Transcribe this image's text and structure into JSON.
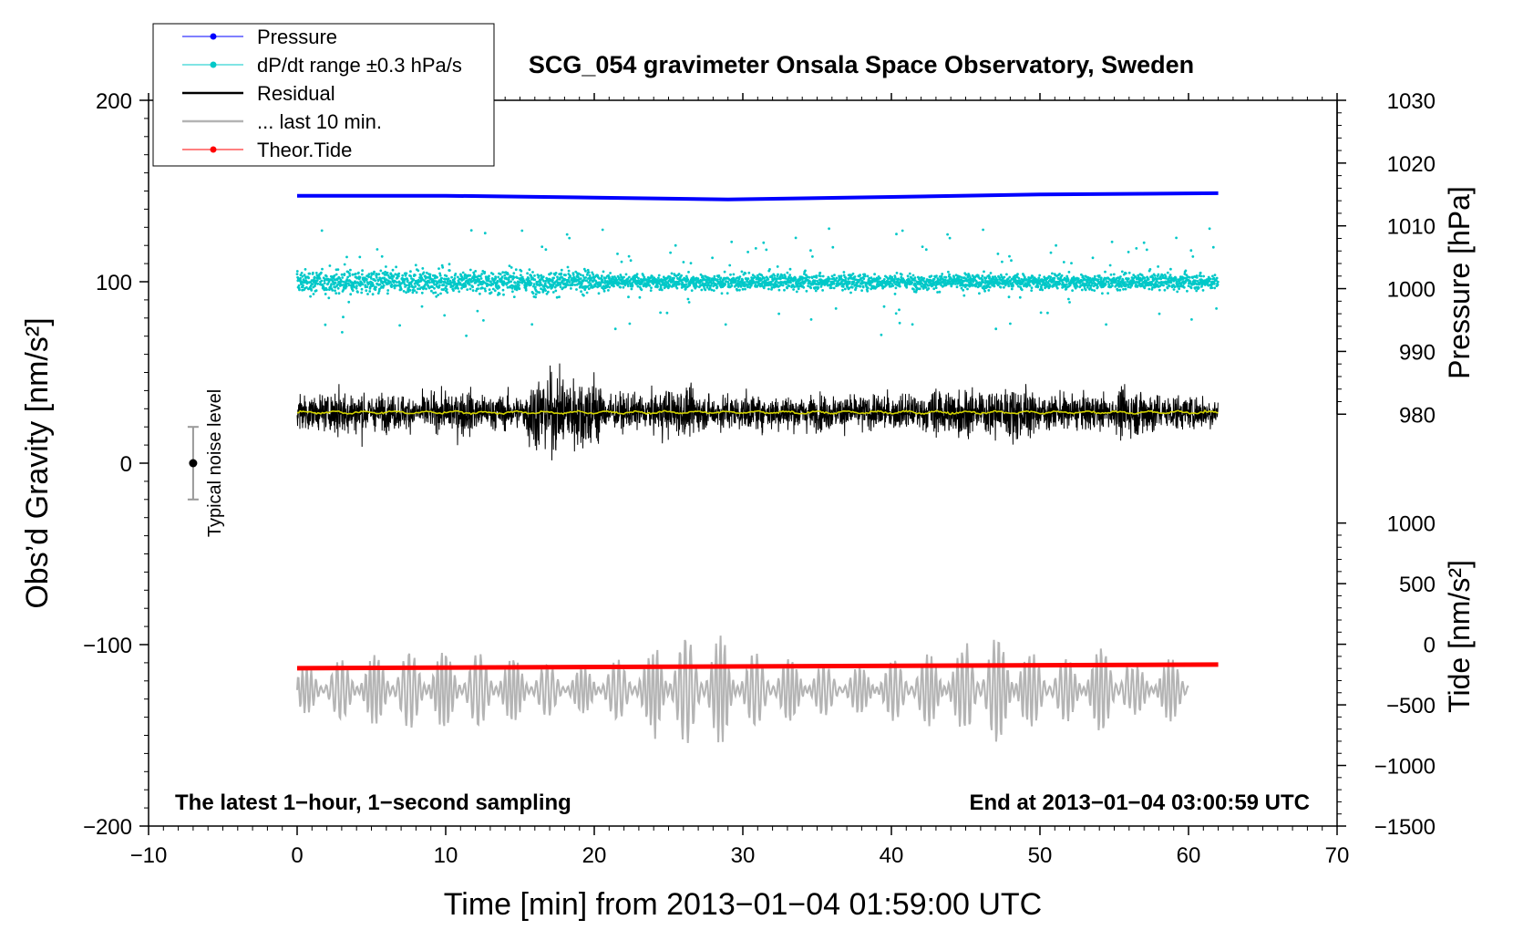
{
  "chart_data": {
    "type": "line",
    "title": "SCG_054 gravimeter Onsala Space Observatory, Sweden",
    "xlabel": "Time [min] from 2013−01−04 01:59:00 UTC",
    "ylabel_left": "Obs’d Gravity [nm/s²]",
    "ylabel_right_pressure": "Pressure [hPa]",
    "ylabel_right_tide": "Tide [nm/s²]",
    "xlim": [
      -10,
      70
    ],
    "ylim_left": [
      -200,
      200
    ],
    "xticks": [
      "−10",
      "0",
      "10",
      "20",
      "30",
      "40",
      "50",
      "60",
      "70"
    ],
    "yticks_left": [
      "−200",
      "−100",
      "0",
      "100",
      "200"
    ],
    "yticks_pressure": [
      "980",
      "990",
      "1000",
      "1010",
      "1020",
      "1030"
    ],
    "pressure_range_hpa": [
      980,
      1030
    ],
    "yticks_tide": [
      "−1500",
      "−1000",
      "−500",
      "0",
      "500",
      "1000"
    ],
    "tide_range_nms2": [
      -1500,
      1000
    ],
    "annotation_left": "The latest 1−hour, 1−second sampling",
    "annotation_right": "End at 2013−01−04 03:00:59 UTC",
    "noise_label": "Typical noise level",
    "noise_bar": {
      "x": -7,
      "center": 0,
      "low": -20,
      "high": 20
    },
    "legend": [
      {
        "label": "Pressure",
        "color": "#0000ff",
        "style": "line-dot"
      },
      {
        "label": "dP/dt range ±0.3 hPa/s",
        "color": "#00c8c8",
        "style": "line-dot"
      },
      {
        "label": "Residual",
        "color": "#000000",
        "style": "line"
      },
      {
        "label": "... last 10 min.",
        "color": "#b4b4b4",
        "style": "line"
      },
      {
        "label": "Theor.Tide",
        "color": "#ff0000",
        "style": "line-dot"
      }
    ],
    "series": [
      {
        "name": "Pressure",
        "axis": "pressure",
        "color": "#0000ff",
        "x": [
          0,
          10,
          20,
          29,
          40,
          50,
          62
        ],
        "y": [
          1014.8,
          1014.8,
          1014.5,
          1014.2,
          1014.6,
          1015.0,
          1015.2
        ]
      },
      {
        "name": "dP/dt",
        "axis": "left",
        "color": "#00c8c8",
        "center": 100,
        "spread": 4
      },
      {
        "name": "Residual",
        "axis": "left",
        "color": "#000000",
        "center": 28,
        "spread": 13
      },
      {
        "name": "Residual smoothed",
        "axis": "left",
        "color": "#d2d200",
        "center": 28
      },
      {
        "name": "Theor.Tide",
        "axis": "left",
        "color": "#ff0000",
        "x": [
          0,
          62
        ],
        "y": [
          -113,
          -111
        ]
      },
      {
        "name": "last 10 min.",
        "axis": "left",
        "color": "#b4b4b4",
        "x_range": [
          0,
          60
        ],
        "center": -125
      }
    ],
    "colors": {
      "axis": "#000000",
      "pressure": "#0000ff",
      "dpdt": "#00c8c8",
      "residual": "#000000",
      "smooth": "#d2d200",
      "last10": "#b4b4b4",
      "tide": "#ff0000"
    }
  }
}
